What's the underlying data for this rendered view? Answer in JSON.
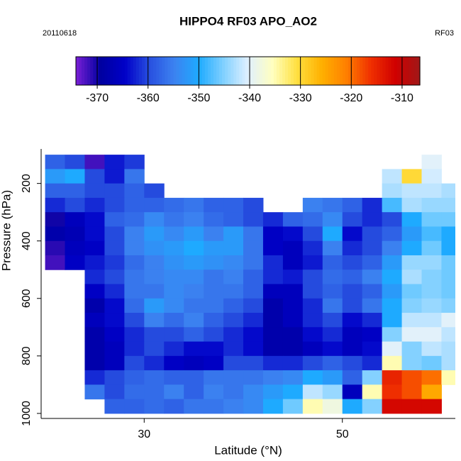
{
  "chart_data": {
    "type": "heatmap",
    "title": "HIPPO4 RF03 APO_AO2",
    "subtitle_left": "20110618",
    "subtitle_right": "RF03",
    "xlabel": "Latitude (°N)",
    "ylabel": "Pressure (hPa)",
    "xlim": [
      19.6,
      61.4
    ],
    "xticks": [
      30,
      50
    ],
    "ylim": [
      1017.5,
      80
    ],
    "yticks": [
      200,
      400,
      600,
      800,
      1000
    ],
    "clim": [
      -374.2,
      -306.5
    ],
    "cticks": [
      -370,
      -360,
      -350,
      -340,
      -330,
      -320,
      -310
    ],
    "colorscale": [
      "#7a1fd6",
      "#0000a0",
      "#0000c8",
      "#2850e0",
      "#3c82f0",
      "#1eaaff",
      "#80d0ff",
      "#e0f0ff",
      "#ffffc0",
      "#ffe040",
      "#ffb000",
      "#ff8000",
      "#f03000",
      "#d00000",
      "#a01818"
    ],
    "x": [
      21,
      23,
      25,
      27,
      29,
      31,
      33,
      35,
      37,
      39,
      41,
      43,
      45,
      47,
      49,
      51,
      53,
      55,
      57,
      59,
      61
    ],
    "y": [
      125,
      175,
      225,
      275,
      325,
      375,
      425,
      475,
      525,
      575,
      625,
      675,
      725,
      775,
      825,
      875,
      925,
      975
    ],
    "z": [
      [
        -358,
        -360,
        -372,
        -363,
        -361,
        null,
        null,
        null,
        null,
        null,
        null,
        null,
        null,
        null,
        null,
        null,
        null,
        null,
        null,
        -340,
        null
      ],
      [
        -352,
        -350,
        -360,
        -363,
        -356,
        null,
        null,
        null,
        null,
        null,
        null,
        null,
        null,
        null,
        null,
        null,
        null,
        -342,
        -330,
        -341,
        null
      ],
      [
        -358,
        -358,
        -360,
        -360,
        -358,
        -360,
        null,
        null,
        null,
        null,
        null,
        null,
        null,
        null,
        null,
        null,
        null,
        -343,
        -342,
        -342,
        -343
      ],
      [
        -362,
        -360,
        -362,
        -360,
        -358,
        -358,
        -357,
        -356,
        -358,
        -358,
        -360,
        null,
        null,
        -355,
        -356,
        -358,
        -362,
        -348,
        -343,
        -344,
        -344
      ],
      [
        -370,
        -366,
        -364,
        -358,
        -357,
        -354,
        -356,
        -355,
        -357,
        -358,
        -360,
        -362,
        -358,
        -357,
        -354,
        -360,
        -362,
        -360,
        -350,
        -346,
        -346
      ],
      [
        -368,
        -367,
        -364,
        -360,
        -355,
        -352,
        -354,
        -352,
        -355,
        -352,
        -356,
        -365,
        -364,
        -360,
        -350,
        -364,
        -360,
        -358,
        -352,
        -348,
        -350
      ],
      [
        -371,
        -366,
        -365,
        -360,
        -355,
        -353,
        -352,
        -350,
        -352,
        -352,
        -356,
        -365,
        -366,
        -362,
        -355,
        -362,
        -360,
        -355,
        -350,
        -346,
        -350
      ],
      [
        -372,
        -365,
        -363,
        -361,
        -357,
        -355,
        -353,
        -352,
        -353,
        -354,
        -356,
        -362,
        -366,
        -363,
        -358,
        -360,
        -358,
        -352,
        -344,
        -344,
        -346
      ],
      [
        null,
        null,
        -362,
        -360,
        -356,
        -355,
        -354,
        -354,
        -356,
        -355,
        -358,
        -362,
        -363,
        -360,
        -357,
        -358,
        -355,
        -350,
        -343,
        -345,
        -346
      ],
      [
        null,
        null,
        -365,
        -362,
        -356,
        -356,
        -354,
        -355,
        -356,
        -356,
        -358,
        -366,
        -366,
        -360,
        -358,
        -360,
        -358,
        -352,
        -346,
        -345,
        -346
      ],
      [
        null,
        null,
        -368,
        -364,
        -357,
        -352,
        -354,
        -356,
        -356,
        -358,
        -360,
        -368,
        -366,
        -362,
        -356,
        -360,
        -356,
        -350,
        -345,
        -344,
        -345
      ],
      [
        null,
        null,
        -366,
        -364,
        -360,
        -355,
        -357,
        -355,
        -358,
        -360,
        -362,
        -368,
        -366,
        -362,
        -360,
        -364,
        -362,
        -350,
        -342,
        -342,
        -340
      ],
      [
        null,
        null,
        -368,
        -365,
        -362,
        -360,
        -360,
        -358,
        -360,
        -362,
        -364,
        -368,
        -368,
        -364,
        -362,
        -366,
        -365,
        -345,
        -340,
        -340,
        -342
      ],
      [
        null,
        null,
        -368,
        -366,
        -362,
        -360,
        -362,
        -364,
        -364,
        -362,
        -364,
        -368,
        -368,
        -366,
        -364,
        -366,
        -364,
        -340,
        -345,
        -342,
        -343
      ],
      [
        null,
        null,
        -368,
        -366,
        -360,
        -362,
        -365,
        -366,
        -365,
        -360,
        -360,
        -362,
        -362,
        -360,
        -358,
        -360,
        -362,
        -335,
        -345,
        -346,
        -343
      ],
      [
        null,
        null,
        -362,
        -360,
        -358,
        -357,
        -358,
        -358,
        -356,
        -356,
        -356,
        -355,
        -354,
        -350,
        -352,
        -358,
        -345,
        -315,
        -318,
        -320,
        -335
      ],
      [
        null,
        null,
        -356,
        -360,
        -357,
        -357,
        -355,
        -358,
        -355,
        -356,
        -354,
        -352,
        -350,
        -342,
        -344,
        -366,
        -335,
        -316,
        -318,
        -325,
        null
      ],
      [
        null,
        null,
        null,
        -358,
        -358,
        -357,
        -358,
        -356,
        -356,
        -355,
        -354,
        -350,
        -346,
        -335,
        -338,
        -350,
        -345,
        -312,
        -312,
        -312,
        null
      ]
    ]
  }
}
